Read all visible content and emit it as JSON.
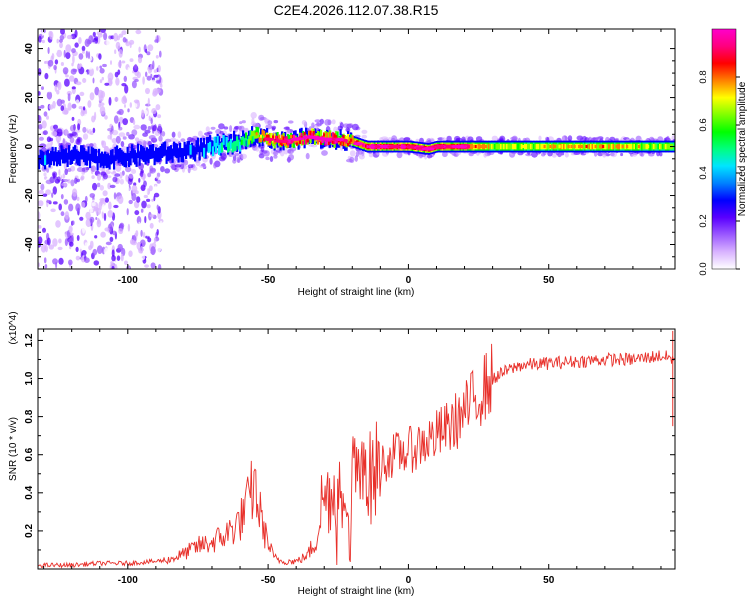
{
  "title": "C2E4.2026.112.07.38.R15",
  "chart_data": [
    {
      "type": "heatmap",
      "name": "spectrogram",
      "xlabel": "Height of straight line (km)",
      "ylabel": "Frequency (Hz)",
      "xlim": [
        -132,
        95
      ],
      "ylim": [
        -50,
        48
      ],
      "xticks": [
        -100,
        -50,
        0,
        50
      ],
      "yticks": [
        40,
        20,
        0,
        -20,
        -40
      ],
      "xtick_labels": [
        "-100",
        "-50",
        "0",
        "50"
      ],
      "ytick_labels": [
        "40",
        "20",
        "0",
        "-20",
        "-40"
      ],
      "colorbar": {
        "label": "Normalized spectral amplitude",
        "range": [
          0.0,
          1.0
        ],
        "ticks": [
          0.0,
          0.2,
          0.4,
          0.6,
          0.8
        ],
        "tick_labels": [
          "0.0",
          "0.2",
          "0.4",
          "0.6",
          "0.8"
        ],
        "colors": [
          "#ffffff",
          "#d9b3ff",
          "#9b59ff",
          "#5a00ff",
          "#0000ff",
          "#0080ff",
          "#00e5ff",
          "#00ff80",
          "#00ff00",
          "#80ff00",
          "#ffff00",
          "#ff8000",
          "#ff0000",
          "#ff007f",
          "#ff00cc"
        ]
      },
      "ridge": {
        "x": [
          -132,
          -120,
          -110,
          -100,
          -90,
          -80,
          -70,
          -60,
          -55,
          -50,
          -45,
          -40,
          -35,
          -30,
          -25,
          -20,
          -15,
          -10,
          0,
          7,
          10,
          20,
          30,
          50,
          70,
          95
        ],
        "frequency": [
          -5,
          -4,
          -5,
          -4,
          -3,
          -2,
          0,
          2,
          5,
          3,
          2,
          3,
          4,
          3,
          3,
          2,
          0,
          0,
          0,
          -1,
          0,
          0,
          0,
          0,
          0,
          0
        ],
        "amplitude": [
          0.35,
          0.35,
          0.35,
          0.35,
          0.3,
          0.35,
          0.4,
          0.5,
          0.7,
          0.85,
          0.85,
          0.9,
          0.9,
          0.92,
          0.9,
          0.8,
          0.95,
          0.97,
          0.95,
          0.97,
          0.9,
          0.9,
          0.65,
          0.7,
          0.75,
          0.6
        ]
      },
      "notes": "Broadband noise below -88 km, narrow line near 0 Hz above -50 km"
    },
    {
      "type": "line",
      "name": "snr",
      "xlabel": "Height of straight line (km)",
      "ylabel": "SNR (10 * v/v)",
      "scale_label": "(x10^4)",
      "xlim": [
        -132,
        95
      ],
      "ylim": [
        0,
        1.26
      ],
      "xticks": [
        -100,
        -50,
        0,
        50
      ],
      "yticks": [
        0.2,
        0.4,
        0.6,
        0.8,
        1.0,
        1.2
      ],
      "xtick_labels": [
        "-100",
        "-50",
        "0",
        "50"
      ],
      "ytick_labels": [
        "0.2",
        "0.4",
        "0.6",
        "0.8",
        "1.0",
        "1.2"
      ],
      "series": [
        {
          "name": "SNR",
          "color": "#e8302a",
          "x": [
            -132,
            -120,
            -110,
            -100,
            -90,
            -85,
            -80,
            -75,
            -70,
            -65,
            -60,
            -57,
            -55,
            -53,
            -51,
            -48,
            -45,
            -40,
            -36,
            -33,
            -31,
            -28,
            -25,
            -22,
            -20,
            -17,
            -15,
            -12,
            -10,
            -5,
            0,
            5,
            10,
            15,
            20,
            25,
            30,
            35,
            40,
            50,
            60,
            70,
            80,
            90,
            95
          ],
          "y": [
            0.02,
            0.02,
            0.03,
            0.03,
            0.04,
            0.05,
            0.08,
            0.12,
            0.14,
            0.18,
            0.25,
            0.35,
            0.45,
            0.3,
            0.18,
            0.06,
            0.04,
            0.04,
            0.07,
            0.15,
            0.35,
            0.4,
            0.42,
            0.45,
            0.5,
            0.45,
            0.45,
            0.5,
            0.55,
            0.6,
            0.62,
            0.66,
            0.7,
            0.75,
            0.82,
            0.92,
            1.0,
            1.04,
            1.07,
            1.08,
            1.09,
            1.1,
            1.1,
            1.12,
            1.1
          ]
        }
      ]
    }
  ]
}
